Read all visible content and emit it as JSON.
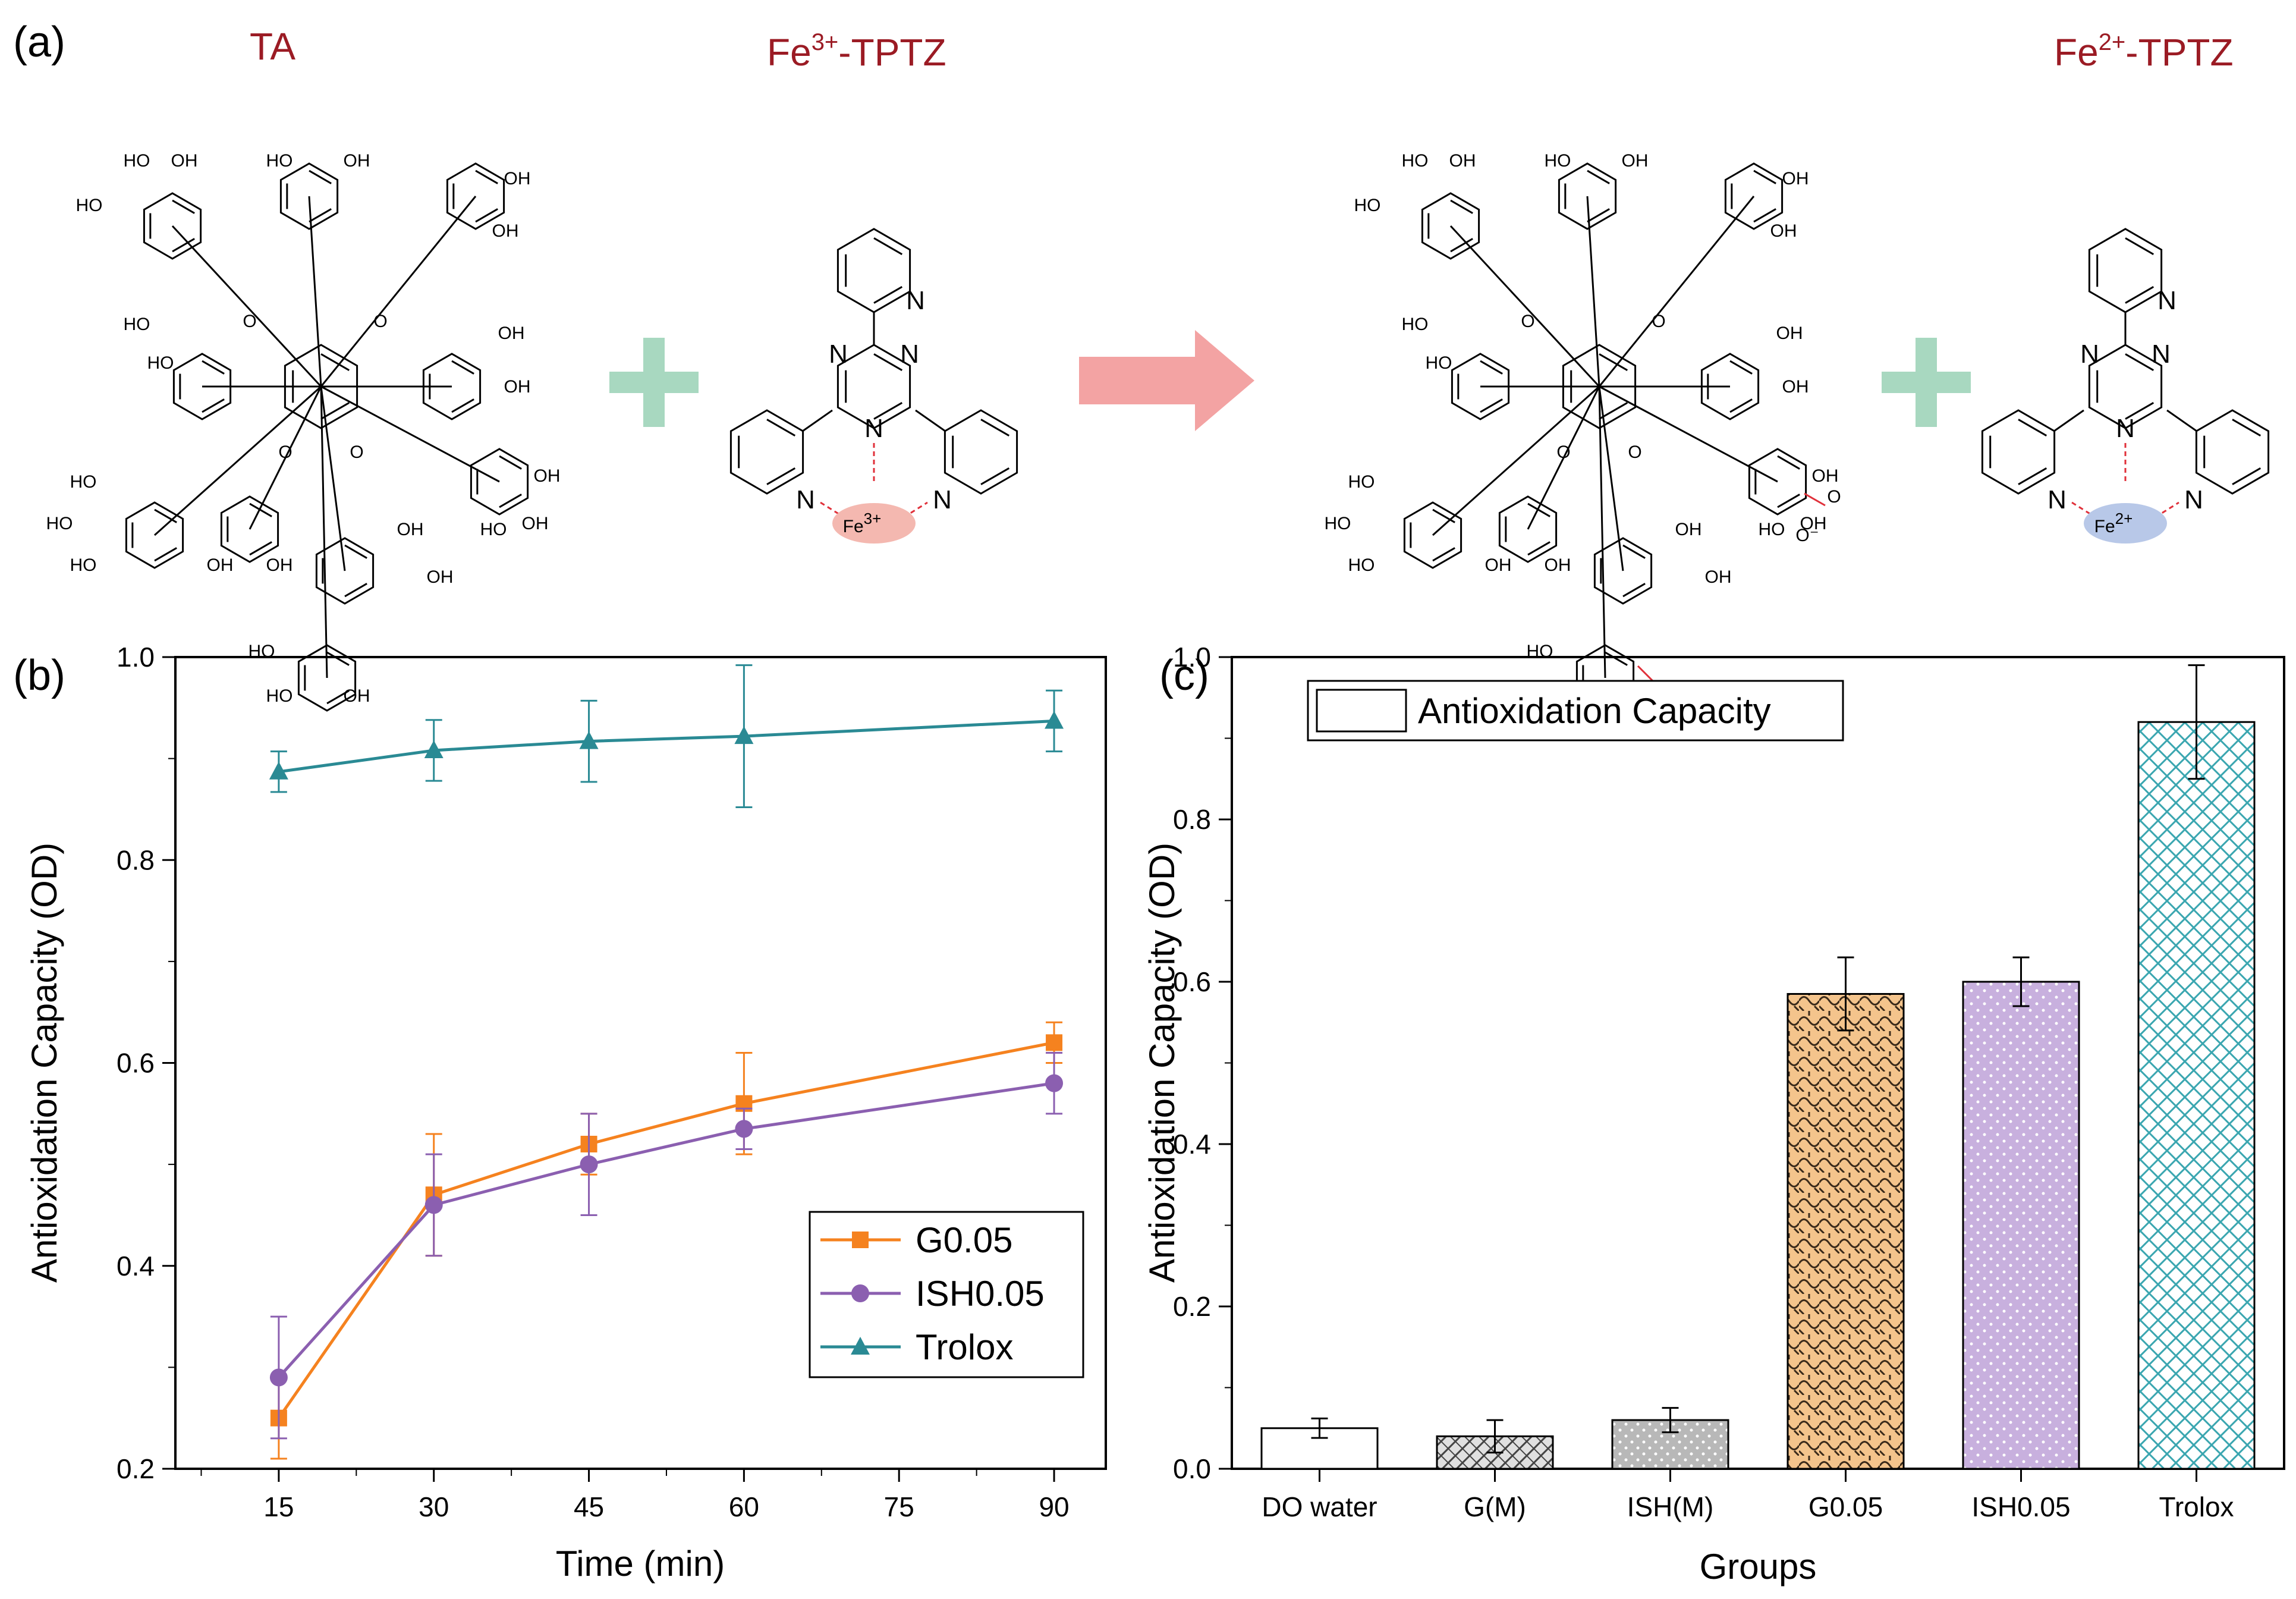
{
  "panels": {
    "a": "(a)",
    "b": "(b)",
    "c": "(c)"
  },
  "scheme": {
    "ta_title": "TA",
    "fe3_title_main": "Fe",
    "fe3_title_sup": "3+",
    "fe3_title_tail": "-TPTZ",
    "fe2_title_main": "Fe",
    "fe2_title_sup": "2+",
    "fe2_title_tail": "-TPTZ",
    "ion3_main": "Fe",
    "ion3_sup": "3+",
    "ion2_main": "Fe",
    "ion2_sup": "2+",
    "atom_oh": "OH",
    "atom_ho": "HO",
    "atom_n": "N",
    "atom_o": "O",
    "atom_ominus": "O⁻",
    "colors": {
      "title": "#9b1b24",
      "plus": "#a8d8c0",
      "arrow": "#f3a3a3",
      "fe3_ellipse": "#f4b8b0",
      "fe2_ellipse": "#b8c8e8",
      "dashed_bond": "#e0303a",
      "oxidized_bond": "#e0303a"
    }
  },
  "chart_data": [
    {
      "type": "line",
      "title": "",
      "xlabel": "Time (min)",
      "ylabel": "Antioxidation Capacity (OD)",
      "xlim": [
        5,
        95
      ],
      "ylim": [
        0.2,
        1.0
      ],
      "xticks": [
        15,
        30,
        45,
        60,
        75,
        90
      ],
      "yticks": [
        0.2,
        0.4,
        0.6,
        0.8,
        1.0
      ],
      "ytick_labels": [
        "0.2",
        "0.4",
        "0.6",
        "0.8",
        "1.0"
      ],
      "legend_position": "center-right",
      "series": [
        {
          "name": "G0.05",
          "color": "#f5821f",
          "marker": "square",
          "x": [
            15,
            30,
            45,
            60,
            90
          ],
          "y": [
            0.25,
            0.47,
            0.52,
            0.56,
            0.62
          ],
          "err": [
            0.04,
            0.06,
            0.03,
            0.05,
            0.02
          ]
        },
        {
          "name": "ISH0.05",
          "color": "#8b5fb0",
          "marker": "circle",
          "x": [
            15,
            30,
            45,
            60,
            90
          ],
          "y": [
            0.29,
            0.46,
            0.5,
            0.535,
            0.58
          ],
          "err": [
            0.06,
            0.05,
            0.05,
            0.02,
            0.03
          ]
        },
        {
          "name": "Trolox",
          "color": "#2a8a94",
          "marker": "triangle",
          "x": [
            15,
            30,
            45,
            60,
            90
          ],
          "y": [
            0.887,
            0.908,
            0.917,
            0.922,
            0.937
          ],
          "err": [
            0.02,
            0.03,
            0.04,
            0.07,
            0.03
          ]
        }
      ]
    },
    {
      "type": "bar",
      "title": "",
      "xlabel": "Groups",
      "ylabel": "Antioxidation Capacity (OD)",
      "ylim": [
        0,
        1.0
      ],
      "yticks": [
        0,
        0.2,
        0.4,
        0.6,
        0.8,
        1.0
      ],
      "ytick_labels": [
        "0.0",
        "0.2",
        "0.4",
        "0.6",
        "0.8",
        "1.0"
      ],
      "legend": "Antioxidation Capacity",
      "legend_position": "top-left",
      "categories": [
        "DO water",
        "G(M)",
        "ISH(M)",
        "G0.05",
        "ISH0.05",
        "Trolox"
      ],
      "values": [
        0.05,
        0.04,
        0.06,
        0.585,
        0.6,
        0.92
      ],
      "errors": [
        0.012,
        0.02,
        0.015,
        0.045,
        0.03,
        0.07
      ],
      "fills": [
        "#ffffff",
        "#d9d9d9",
        "#b8b8b8",
        "#f4c48c",
        "#c8b0de",
        "#ffffff"
      ],
      "patterns": [
        "none",
        "hatch",
        "dots",
        "weave",
        "dots",
        "cross"
      ],
      "pattern_colors": [
        "#000000",
        "#444444",
        "#ffffff",
        "#333333",
        "#ffffff",
        "#3aa6b0"
      ]
    }
  ]
}
